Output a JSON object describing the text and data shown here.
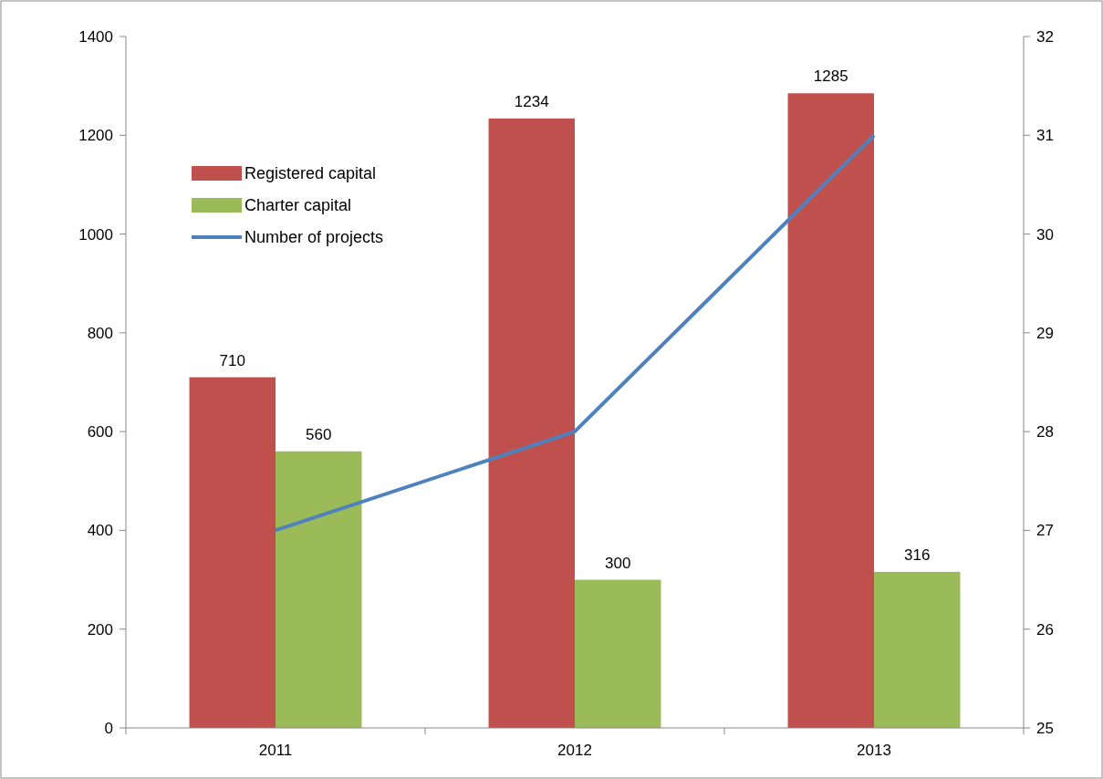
{
  "chart_data": {
    "type": "bar",
    "categories": [
      "2011",
      "2012",
      "2013"
    ],
    "series": [
      {
        "name": "Registered capital",
        "color": "#c0504d",
        "values": [
          710,
          1234,
          1285
        ],
        "value_labels": [
          "710",
          "1234",
          "1285"
        ]
      },
      {
        "name": "Charter capital",
        "color": "#9bbb59",
        "values": [
          560,
          300,
          316
        ],
        "value_labels": [
          "560",
          "300",
          "316"
        ]
      },
      {
        "name": "Number of projects",
        "type": "line",
        "axis": "y2",
        "color": "#4f81bd",
        "values": [
          27,
          28,
          31
        ]
      }
    ],
    "ylim": [
      0,
      1400
    ],
    "yticks": [
      0,
      200,
      400,
      600,
      800,
      1000,
      1200,
      1400
    ],
    "y2lim": [
      25,
      32
    ],
    "y2ticks": [
      25,
      26,
      27,
      28,
      29,
      30,
      31,
      32
    ],
    "grid": false,
    "legend": "top left",
    "marker": "none"
  }
}
